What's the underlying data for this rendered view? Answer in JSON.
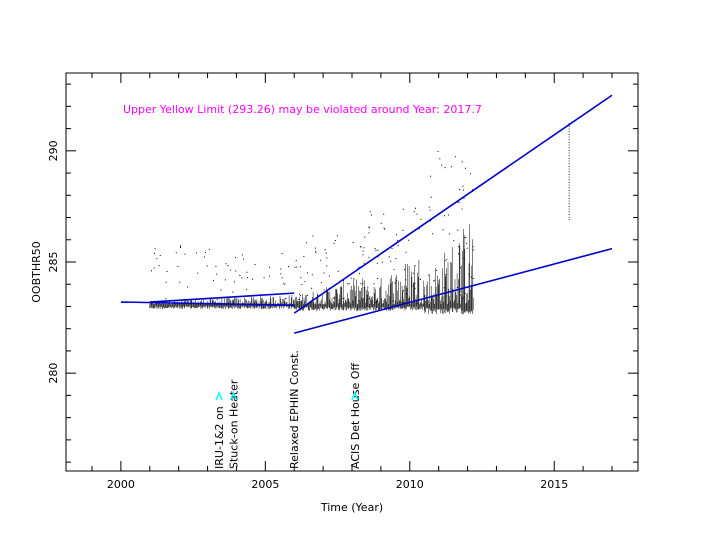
{
  "chart_data": {
    "type": "scatter",
    "title": "",
    "annotation": "Upper Yellow  Limit (293.26) may be violated around Year: 2017.7",
    "annotation_color": "#ff00ff",
    "xlabel": "Time (Year)",
    "ylabel": "OOBTHR50",
    "xlim": [
      1998.1,
      2017.9
    ],
    "ylim": [
      275.6,
      293.5
    ],
    "x_ticks": [
      2000,
      2005,
      2010,
      2015
    ],
    "y_ticks": [
      280,
      285,
      290
    ],
    "x_minor_step": 1,
    "y_minor_step": 1,
    "grid": false,
    "point_color": "#000000",
    "line_color": "#0000cc",
    "trend_lines": [
      {
        "x": [
          2000.0,
          2006.0
        ],
        "y": [
          283.2,
          283.05
        ]
      },
      {
        "x": [
          2001.0,
          2006.0
        ],
        "y": [
          283.2,
          283.6
        ]
      },
      {
        "x": [
          2006.0,
          2017.0
        ],
        "y": [
          282.7,
          292.5
        ]
      },
      {
        "x": [
          2006.0,
          2017.0
        ],
        "y": [
          281.8,
          285.6
        ]
      }
    ],
    "events": [
      {
        "label": "IRU-1&2 on",
        "x": 2003.4,
        "marker_color": "#00ffff"
      },
      {
        "label": "Stuck-on Heater",
        "x": 2003.9,
        "marker_color": "#00ffff"
      },
      {
        "label": "Relaxed EPHIN Const.",
        "x": 2006.0,
        "marker_color": ""
      },
      {
        "label": "ACIS Det House Off",
        "x": 2008.1,
        "marker_color": "#00ffff"
      }
    ],
    "data_segments": [
      {
        "x0": 2001.0,
        "x1": 2006.0,
        "base": 283.1,
        "spread_low": 0.15,
        "spread_high": 0.45,
        "outlier_max": 285.8
      },
      {
        "x0": 2006.0,
        "x1": 2008.5,
        "base": 283.1,
        "spread_low": 0.2,
        "spread_high": 1.3,
        "outlier_max": 286.3
      },
      {
        "x0": 2008.5,
        "x1": 2010.5,
        "base": 283.1,
        "spread_low": 0.2,
        "spread_high": 2.6,
        "outlier_max": 287.5
      },
      {
        "x0": 2010.5,
        "x1": 2012.2,
        "base": 283.1,
        "spread_low": 0.3,
        "spread_high": 4.2,
        "outlier_max": 290.0
      }
    ],
    "late_points": {
      "x": 2015.5,
      "y_min": 286.9,
      "y_max": 291.3
    }
  }
}
